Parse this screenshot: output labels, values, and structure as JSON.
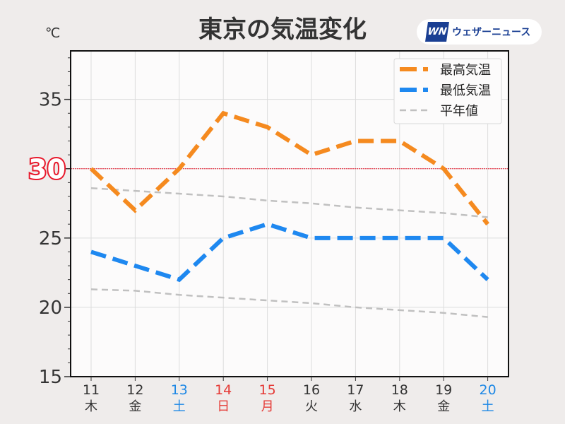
{
  "chart_data": {
    "type": "line",
    "title": "東京の気温変化",
    "ylabel": "℃",
    "ylim": [
      15,
      38.5
    ],
    "yticks": [
      15,
      20,
      25,
      30,
      35
    ],
    "highlight_line": {
      "value": 30,
      "label": "30",
      "color": "#e8192c"
    },
    "categories": [
      "11",
      "12",
      "13",
      "14",
      "15",
      "16",
      "17",
      "18",
      "19",
      "20"
    ],
    "weekdays": [
      "木",
      "金",
      "土",
      "日",
      "月",
      "火",
      "水",
      "木",
      "金",
      "土"
    ],
    "label_colors": [
      "#333333",
      "#333333",
      "#1e88e5",
      "#e53935",
      "#e53935",
      "#333333",
      "#333333",
      "#333333",
      "#333333",
      "#1e88e5"
    ],
    "series": [
      {
        "name": "最高気温",
        "color": "#f58a1f",
        "values": [
          30,
          27,
          30,
          34,
          33,
          31,
          32,
          32,
          30,
          26
        ]
      },
      {
        "name": "最低気温",
        "color": "#1e88f0",
        "values": [
          24,
          23,
          22,
          25,
          26,
          25,
          25,
          25,
          25,
          22
        ]
      },
      {
        "name": "平年値",
        "color": "#c0c0c0",
        "values": [
          28.6,
          28.4,
          28.2,
          28.0,
          27.7,
          27.5,
          27.2,
          27.0,
          26.8,
          26.5
        ]
      },
      {
        "name": "平年値_low",
        "color": "#c0c0c0",
        "values": [
          21.3,
          21.2,
          20.9,
          20.7,
          20.5,
          20.3,
          20.0,
          19.8,
          19.6,
          19.3
        ]
      }
    ],
    "legend": [
      "最高気温",
      "最低気温",
      "平年値"
    ],
    "legend_position": "top-right",
    "grid": true
  },
  "logo": {
    "mark": "WN",
    "text": "ウェザーニュース"
  }
}
